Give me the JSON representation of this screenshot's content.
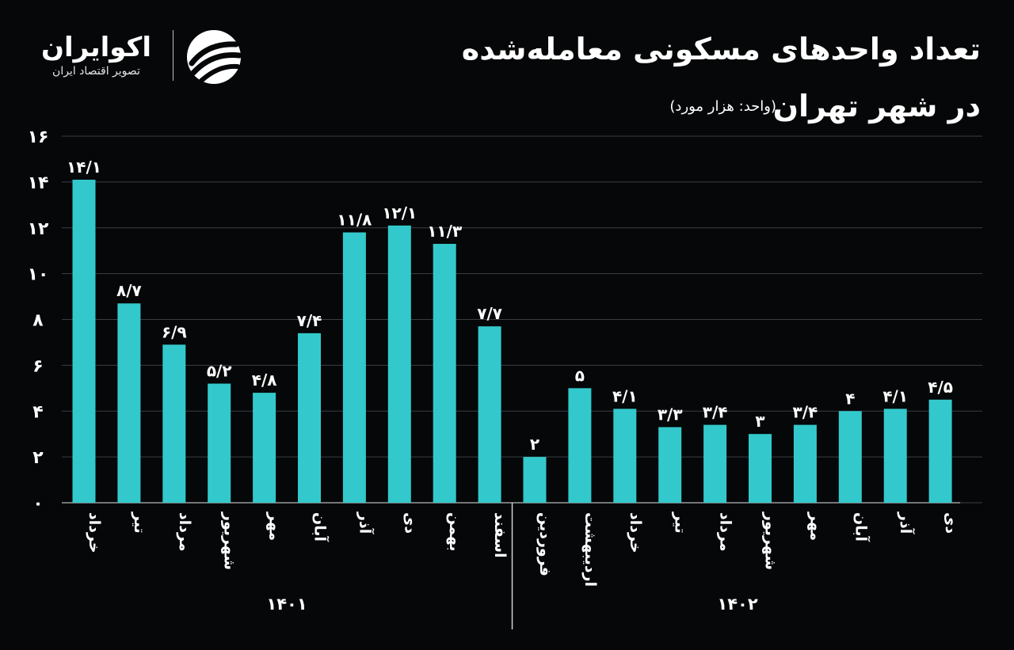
{
  "brand": {
    "name": "اکوایران",
    "tagline": "تصویر اقتصاد ایران",
    "accent": "#33c9cc"
  },
  "header": {
    "title_line1": "تعداد واحدهای مسکونی معامله‌شده",
    "title_line2": "در شهر تهران",
    "unit": "(واحد: هزار مورد)"
  },
  "chart_data": {
    "type": "bar",
    "title": "تعداد واحدهای مسکونی معامله‌شده در شهر تهران",
    "unit": "(واحد: هزار مورد)",
    "ylim": [
      0,
      16
    ],
    "yticks": [
      0,
      2,
      4,
      6,
      8,
      10,
      12,
      14,
      16
    ],
    "ytick_labels": [
      "۰",
      "۲",
      "۴",
      "۶",
      "۸",
      "۱۰",
      "۱۲",
      "۱۴",
      "۱۶"
    ],
    "grid": true,
    "bar_color": "#33c9cc",
    "categories": [
      "خرداد",
      "تیر",
      "مرداد",
      "شهریور",
      "مهر",
      "آبان",
      "آذر",
      "دی",
      "بهمن",
      "اسفند",
      "فروردین",
      "اردیبهشت",
      "خرداد",
      "تیر",
      "مرداد",
      "شهریور",
      "مهر",
      "آبان",
      "آذر",
      "دی"
    ],
    "values": [
      14.1,
      8.7,
      6.9,
      5.2,
      4.8,
      7.4,
      11.8,
      12.1,
      11.3,
      7.7,
      2,
      5,
      4.1,
      3.3,
      3.4,
      3,
      3.4,
      4,
      4.1,
      4.5
    ],
    "value_labels": [
      "۱۴/۱",
      "۸/۷",
      "۶/۹",
      "۵/۲",
      "۴/۸",
      "۷/۴",
      "۱۱/۸",
      "۱۲/۱",
      "۱۱/۳",
      "۷/۷",
      "۲",
      "۵",
      "۴/۱",
      "۳/۳",
      "۳/۴",
      "۳",
      "۳/۴",
      "۴",
      "۴/۱",
      "۴/۵"
    ],
    "groups": [
      {
        "label": "۱۴۰۱",
        "count": 10
      },
      {
        "label": "۱۴۰۲",
        "count": 10
      }
    ]
  }
}
